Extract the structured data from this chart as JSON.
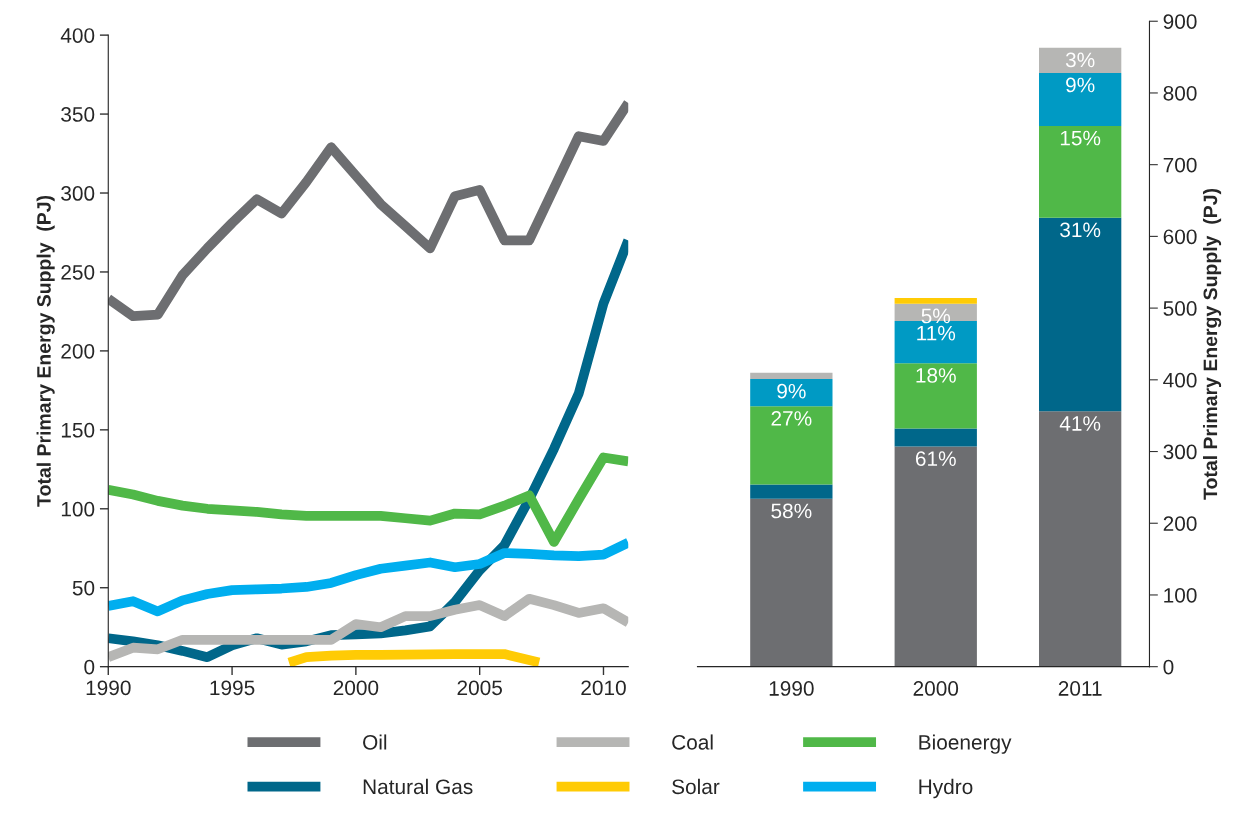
{
  "chart_data": [
    {
      "type": "line",
      "ylabel": "Total Primary Energy Supply  (PJ)",
      "xlim": [
        1990,
        2011
      ],
      "xticks": [
        1990,
        1995,
        2000,
        2005,
        2010
      ],
      "ylim": [
        0,
        400
      ],
      "yticks": [
        0,
        50,
        100,
        150,
        200,
        250,
        300,
        350,
        400
      ],
      "grid": false,
      "legend": "bottom",
      "marker": "none",
      "line_style": "solid",
      "x": [
        1990,
        1991,
        1992,
        1993,
        1994,
        1995,
        1996,
        1997,
        1998,
        1999,
        2000,
        2001,
        2002,
        2003,
        2004,
        2005,
        2006,
        2007,
        2008,
        2009,
        2010,
        2011
      ],
      "series": [
        {
          "name": "Oil",
          "color": "#6d6e71",
          "values": [
            233,
            222,
            223,
            248,
            265,
            281,
            296,
            287,
            307,
            329,
            311,
            293,
            279,
            265,
            298,
            302,
            270,
            270,
            303,
            336,
            333,
            357
          ]
        },
        {
          "name": "Natural Gas",
          "color": "#00678a",
          "values": [
            18,
            16,
            13.5,
            10,
            6,
            13.5,
            18,
            14,
            16,
            20,
            20.5,
            21,
            23,
            25.5,
            41,
            61,
            77,
            106,
            138,
            173,
            230,
            270
          ]
        },
        {
          "name": "Coal",
          "color": "#b6b6b4",
          "values": [
            6,
            12,
            11,
            17,
            17,
            17,
            17,
            17,
            17,
            17,
            27,
            25,
            32,
            32,
            36,
            39,
            32,
            43,
            39,
            34,
            37,
            28
          ]
        },
        {
          "name": "Solar",
          "color": "#ffcb05",
          "x": [
            1997.3,
            1998,
            1999,
            2000,
            2001,
            2002,
            2003,
            2004,
            2005,
            2006,
            2007.4
          ],
          "values": [
            2.5,
            6,
            7,
            7.5,
            7.5,
            7.7,
            7.8,
            8,
            8,
            8,
            2.7
          ]
        },
        {
          "name": "Bioenergy",
          "color": "#50b848",
          "values": [
            112,
            109,
            105,
            102,
            100,
            99,
            98,
            96.5,
            95.5,
            95.5,
            95.5,
            95.5,
            94,
            92.5,
            97,
            96.5,
            102,
            108.5,
            79,
            106,
            132.5,
            130
          ]
        },
        {
          "name": "Hydro",
          "color": "#00aeef",
          "values": [
            38.5,
            41.5,
            35,
            42,
            46,
            48.5,
            49,
            49.5,
            50.5,
            53,
            58,
            62,
            64,
            66,
            63,
            65,
            72,
            71.5,
            70.5,
            70,
            71,
            78.5
          ]
        }
      ]
    },
    {
      "type": "bar",
      "stacked": true,
      "categories": [
        "1990",
        "2000",
        "2011"
      ],
      "ylabel": "Total Primary Energy Supply  (PJ)",
      "ylim": [
        0,
        900
      ],
      "yticks": [
        0,
        100,
        200,
        300,
        400,
        500,
        600,
        700,
        800,
        900
      ],
      "grid": false,
      "series": [
        {
          "color": "#6d6e71",
          "values": [
            234,
            307,
            356
          ]
        },
        {
          "color": "#00678a",
          "values": [
            20,
            25,
            270
          ]
        },
        {
          "color": "#50b848",
          "values": [
            109,
            91,
            128
          ]
        },
        {
          "color": "#009ac4",
          "values": [
            38,
            59,
            74
          ]
        },
        {
          "color": "#b6b6b4",
          "values": [
            9,
            24,
            35
          ]
        },
        {
          "color": "#ffcb05",
          "values": [
            null,
            8,
            null
          ]
        }
      ],
      "annotations": [
        {
          "text": "58%",
          "x": "1990",
          "y": 234
        },
        {
          "text": "27%",
          "x": "1990",
          "y": 363
        },
        {
          "text": "9%",
          "x": "1990",
          "y": 401
        },
        {
          "text": "61%",
          "x": "2000",
          "y": 307
        },
        {
          "text": "18%",
          "x": "2000",
          "y": 423
        },
        {
          "text": "11%",
          "x": "2000",
          "y": 482
        },
        {
          "text": "5%",
          "x": "2000",
          "y": 506
        },
        {
          "text": "41%",
          "x": "2011",
          "y": 356
        },
        {
          "text": "31%",
          "x": "2011",
          "y": 626
        },
        {
          "text": "15%",
          "x": "2011",
          "y": 754
        },
        {
          "text": "9%",
          "x": "2011",
          "y": 828
        },
        {
          "text": "3%",
          "x": "2011",
          "y": 863
        }
      ]
    }
  ]
}
